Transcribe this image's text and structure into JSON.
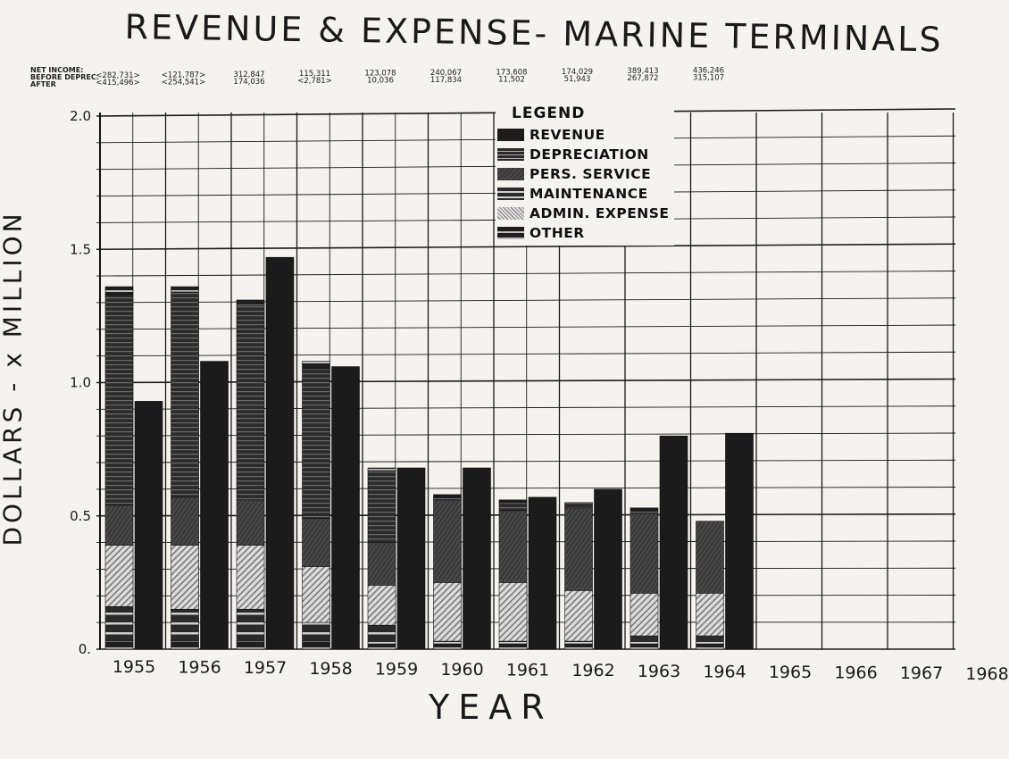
{
  "chart_data": {
    "type": "bar",
    "title": "REVENUE & EXPENSE- MARINE TERMINALS",
    "xlabel": "YEAR",
    "ylabel": "DOLLARS - x MILLION",
    "ylim": [
      0,
      2.0
    ],
    "y_ticks": [
      "0.",
      "0.5",
      "1.0",
      "1.5",
      "2.0"
    ],
    "grid": true,
    "legend_placement": "top-center",
    "categories": [
      "1955",
      "1956",
      "1957",
      "1958",
      "1959",
      "1960",
      "1961",
      "1962",
      "1963",
      "1964",
      "1965",
      "1966",
      "1967",
      "1968"
    ],
    "revenue": [
      0.93,
      1.08,
      1.47,
      1.06,
      0.68,
      0.68,
      0.57,
      0.6,
      0.8,
      0.81,
      null,
      null,
      null,
      null
    ],
    "expense_series": [
      {
        "name": "OTHER",
        "values": [
          0.03,
          0.03,
          0.03,
          0.03,
          0.02,
          0.02,
          0.02,
          0.02,
          0.02,
          0.02,
          null,
          null,
          null,
          null
        ]
      },
      {
        "name": "MAINTENANCE",
        "values": [
          0.13,
          0.12,
          0.12,
          0.07,
          0.07,
          0.01,
          0.01,
          0.01,
          0.03,
          0.03,
          null,
          null,
          null,
          null
        ]
      },
      {
        "name": "ADMIN. EXPENSE",
        "values": [
          0.23,
          0.24,
          0.24,
          0.21,
          0.15,
          0.22,
          0.22,
          0.19,
          0.16,
          0.16,
          null,
          null,
          null,
          null
        ]
      },
      {
        "name": "PERS. SERVICE",
        "values": [
          0.15,
          0.18,
          0.17,
          0.18,
          0.16,
          0.31,
          0.27,
          0.31,
          0.3,
          0.27,
          null,
          null,
          null,
          null
        ]
      },
      {
        "name": "DEPRECIATION",
        "values": [
          0.79,
          0.77,
          0.73,
          0.56,
          0.27,
          0.01,
          0.03,
          0.02,
          0.01,
          0.0,
          null,
          null,
          null,
          null
        ]
      },
      {
        "name": "OTHER2",
        "values": [
          0.03,
          0.02,
          0.02,
          0.03,
          0.01,
          0.01,
          0.01,
          0.0,
          0.01,
          0.0,
          null,
          null,
          null,
          null
        ]
      }
    ],
    "net_income": {
      "header": [
        "NET INCOME:",
        "BEFORE DEPREC.",
        "AFTER"
      ],
      "before_deprec": [
        "<282,731>",
        "<121,787>",
        "312,847",
        "115,311",
        "123,078",
        "240,067",
        "173,608",
        "174,029",
        "389,413",
        "436,246"
      ],
      "after": [
        "<415,496>",
        "<254,541>",
        "174,036",
        "<2,781>",
        "10,036",
        "117,834",
        "11,502",
        "51,943",
        "267,872",
        "315,107"
      ]
    },
    "legend": {
      "title": "LEGEND",
      "items": [
        "REVENUE",
        "DEPRECIATION",
        "PERS. SERVICE",
        "MAINTENANCE",
        "ADMIN. EXPENSE",
        "OTHER"
      ]
    }
  }
}
